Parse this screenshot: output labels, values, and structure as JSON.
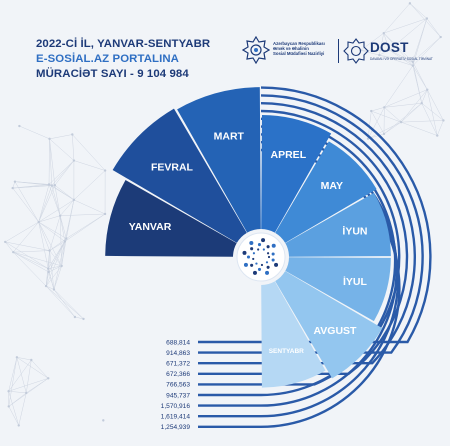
{
  "header": {
    "title_line1": "2022-Cİ İL, YANVAR-SENTYABR",
    "title_line2": "E-SOSİAL.AZ PORTALINA",
    "title_line3": "MÜRACİƏT SAYI - 9 104 984"
  },
  "logos": {
    "ministry_line1": "Azərbaycan Respublikası",
    "ministry_line2": "Əmək və Əhalinin",
    "ministry_line3": "Sosial Müdafiəsi Nazirliyi",
    "dost_name": "DOST",
    "dost_subtitle": "DAVAMLI VƏ OPERATİV SOSİAL TƏMİNAT"
  },
  "colors": {
    "dark_navy": "#1d3a78",
    "accent_blue": "#2f6fc3",
    "ring_blue": "#2a5aa8"
  },
  "chart_data": {
    "type": "pie",
    "title": "2022-Cİ İL, YANVAR-SENTYABR E-SOSİAL.AZ PORTALINA MÜRACİƏT SAYI - 9 104 984",
    "total": 9104984,
    "categories": [
      "YANVAR",
      "FEVRAL",
      "MART",
      "APREL",
      "MAY",
      "İYUN",
      "İYUL",
      "AVGUST",
      "SENTYABR"
    ],
    "colors": [
      "#1c3b78",
      "#1f4f9c",
      "#2463b5",
      "#2b72c8",
      "#3f8ad6",
      "#5ba0e0",
      "#76b3e8",
      "#93c6ef",
      "#b5d8f4"
    ],
    "values": [
      1254939,
      1619414,
      1570916,
      945737,
      766563,
      672366,
      671372,
      914863,
      688814
    ],
    "value_labels": [
      "1,254,939",
      "1,619,414",
      "1,570,916",
      "945,737",
      "766,563",
      "672,366",
      "671,372",
      "914,863",
      "688,814"
    ]
  }
}
